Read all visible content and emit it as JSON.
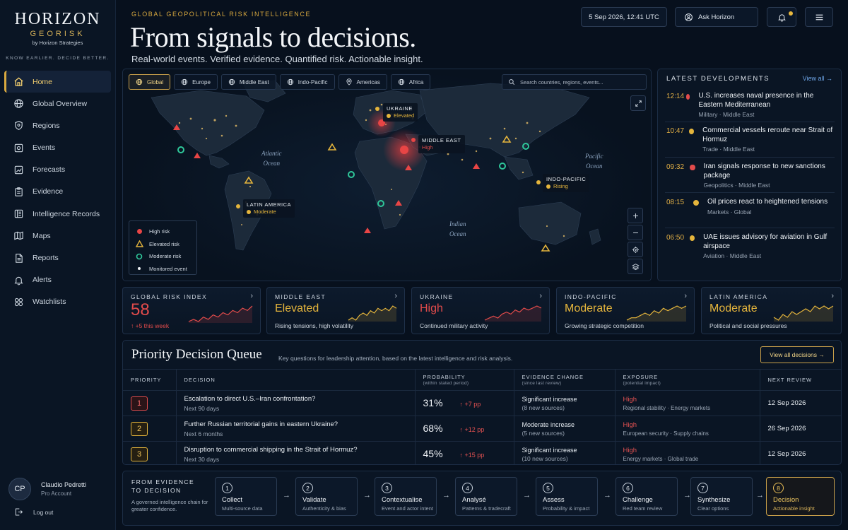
{
  "brand": {
    "name": "HORIZON",
    "sub": "GEORISK",
    "by": "by Horizon Strategies",
    "tagline": "KNOW EARLIER. DECIDE BETTER."
  },
  "nav": [
    {
      "label": "Home",
      "icon": "home-icon",
      "active": true
    },
    {
      "label": "Global Overview",
      "icon": "globe-icon"
    },
    {
      "label": "Regions",
      "icon": "shield-icon"
    },
    {
      "label": "Events",
      "icon": "events-icon"
    },
    {
      "label": "Forecasts",
      "icon": "forecast-icon"
    },
    {
      "label": "Evidence",
      "icon": "clipboard-icon"
    },
    {
      "label": "Intelligence Records",
      "icon": "records-icon"
    },
    {
      "label": "Maps",
      "icon": "map-icon"
    },
    {
      "label": "Reports",
      "icon": "report-icon"
    },
    {
      "label": "Alerts",
      "icon": "bell-icon"
    },
    {
      "label": "Watchlists",
      "icon": "grid-icon"
    }
  ],
  "user": {
    "initials": "CP",
    "name": "Claudio Pedretti",
    "role": "Pro Account"
  },
  "logout": "Log out",
  "header": {
    "eyebrow": "GLOBAL GEOPOLITICAL RISK INTELLIGENCE",
    "title": "From signals to decisions.",
    "subtitle": "Real-world events. Verified evidence. Quantified risk. Actionable insight.",
    "datetime": "5 Sep 2026, 12:41 UTC",
    "ask": "Ask Horizon"
  },
  "map": {
    "tabs": [
      "Global",
      "Europe",
      "Middle East",
      "Indo-Pacific",
      "Americas",
      "Africa"
    ],
    "search_placeholder": "Search countries, regions, events...",
    "oceans": [
      {
        "name": "Atlantic\nOcean"
      },
      {
        "name": "Pacific\nOcean"
      },
      {
        "name": "Indian\nOcean"
      }
    ],
    "callouts": [
      {
        "title": "UKRAINE",
        "value": "Elevated",
        "color": "#e5b53c"
      },
      {
        "title": "MIDDLE EAST",
        "value": "High",
        "color": "#e24b4b"
      },
      {
        "title": "INDO-PACIFIC",
        "value": "Rising",
        "color": "#e5b53c"
      },
      {
        "title": "LATIN AMERICA",
        "value": "Moderate",
        "color": "#e5b53c"
      }
    ],
    "legend": [
      "High risk",
      "Elevated risk",
      "Moderate risk",
      "Monitored event"
    ]
  },
  "latest": {
    "title": "LATEST DEVELOPMENTS",
    "view_all": "View all →",
    "items": [
      {
        "time": "12:14",
        "color": "#e24b4b",
        "title": "U.S. increases naval presence in the Eastern Mediterranean",
        "meta": "Military · Middle East"
      },
      {
        "time": "10:47",
        "color": "#e5b53c",
        "title": "Commercial vessels reroute near Strait of Hormuz",
        "meta": "Trade · Middle East"
      },
      {
        "time": "09:32",
        "color": "#e24b4b",
        "title": "Iran signals response to new sanctions package",
        "meta": "Geopolitics · Middle East"
      },
      {
        "time": "08:15",
        "color": "#e5b53c",
        "title": "Oil prices react to heightened tensions",
        "meta": "Markets · Global"
      },
      {
        "time": "06:50",
        "color": "#e5b53c",
        "title": "UAE issues advisory for aviation in Gulf airspace",
        "meta": "Aviation · Middle East"
      }
    ]
  },
  "cards": [
    {
      "label": "GLOBAL RISK INDEX",
      "value": "58",
      "desc": "↑ +5 this week",
      "color": "#e24b4b",
      "spark": [
        4,
        5,
        4,
        6,
        5,
        7,
        6,
        8,
        7,
        9,
        8,
        10,
        9,
        11
      ]
    },
    {
      "label": "MIDDLE EAST",
      "value": "Elevated",
      "desc": "Rising tensions, high volatility",
      "color": "#e5b53c",
      "spark": [
        3,
        4,
        3,
        5,
        6,
        5,
        7,
        6,
        8,
        7,
        8,
        7,
        9,
        8
      ]
    },
    {
      "label": "UKRAINE",
      "value": "High",
      "desc": "Continued military activity",
      "color": "#e24b4b",
      "spark": [
        3,
        4,
        5,
        4,
        6,
        7,
        6,
        8,
        7,
        9,
        8,
        9,
        10,
        9
      ]
    },
    {
      "label": "INDO-PACIFIC",
      "value": "Moderate",
      "desc": "Growing strategic competition",
      "color": "#e5b53c",
      "spark": [
        3,
        4,
        4,
        5,
        6,
        5,
        7,
        6,
        8,
        7,
        8,
        9,
        8,
        9
      ]
    },
    {
      "label": "LATIN AMERICA",
      "value": "Moderate",
      "desc": "Political and social pressures",
      "color": "#e5b53c",
      "spark": [
        4,
        3,
        5,
        4,
        6,
        5,
        6,
        7,
        6,
        8,
        7,
        8,
        7,
        8
      ]
    }
  ],
  "queue": {
    "title": "Priority Decision Queue",
    "subtitle": "Key questions for leadership attention, based on the latest intelligence and risk analysis.",
    "view_all": "View all decisions →",
    "headers": {
      "priority": "PRIORITY",
      "decision": "DECISION",
      "probability": "PROBABILITY",
      "probability_sub": "(within stated period)",
      "evidence": "EVIDENCE CHANGE",
      "evidence_sub": "(since last review)",
      "exposure": "EXPOSURE",
      "exposure_sub": "(potential impact)",
      "review": "NEXT REVIEW"
    },
    "rows": [
      {
        "priority": "1",
        "pcolor": "#e24b4b",
        "title": "Escalation to direct U.S.–Iran confrontation?",
        "period": "Next 90 days",
        "prob": "31%",
        "delta": "↑ +7 pp",
        "evidence": "Significant increase",
        "evidence_sub": "(8 new sources)",
        "exposure": "High",
        "exposure_sub": "Regional stability · Energy markets",
        "review": "12 Sep 2026"
      },
      {
        "priority": "2",
        "pcolor": "#e5b53c",
        "title": "Further Russian territorial gains in eastern Ukraine?",
        "period": "Next 6 months",
        "prob": "68%",
        "delta": "↑ +12 pp",
        "evidence": "Moderate increase",
        "evidence_sub": "(5 new sources)",
        "exposure": "High",
        "exposure_sub": "European security · Supply chains",
        "review": "26 Sep 2026"
      },
      {
        "priority": "3",
        "pcolor": "#e5b53c",
        "title": "Disruption to commercial shipping in the Strait of Hormuz?",
        "period": "Next 30 days",
        "prob": "45%",
        "delta": "↑ +15 pp",
        "evidence": "Significant increase",
        "evidence_sub": "(10 new sources)",
        "exposure": "High",
        "exposure_sub": "Energy markets · Global trade",
        "review": "12 Sep 2026"
      }
    ]
  },
  "chain": {
    "title": "FROM EVIDENCE\nTO DECISION",
    "subtitle": "A governed intelligence chain for greater confidence.",
    "steps": [
      {
        "n": "1",
        "title": "Collect",
        "sub": "Multi-source data"
      },
      {
        "n": "2",
        "title": "Validate",
        "sub": "Authenticity & bias"
      },
      {
        "n": "3",
        "title": "Contextualise",
        "sub": "Event and actor intent"
      },
      {
        "n": "4",
        "title": "Analysé",
        "sub": "Patterns & tradecraft"
      },
      {
        "n": "5",
        "title": "Assess",
        "sub": "Probability & impact"
      },
      {
        "n": "6",
        "title": "Challenge",
        "sub": "Red team review"
      },
      {
        "n": "7",
        "title": "Synthesize",
        "sub": "Clear options"
      },
      {
        "n": "8",
        "title": "Decision",
        "sub": "Actionable insight"
      }
    ]
  }
}
